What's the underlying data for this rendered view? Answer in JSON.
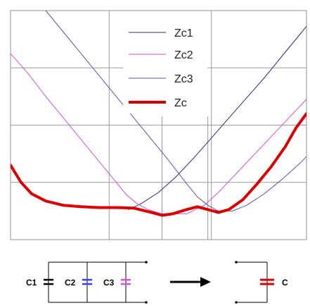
{
  "chart_data": {
    "type": "line",
    "title": "",
    "xlabel": "",
    "ylabel": "",
    "xlim": [
      0,
      8.4
    ],
    "ylim": [
      0,
      8
    ],
    "grid": true,
    "legend_position": "top-center",
    "series": [
      {
        "name": "Zc1",
        "color": "#2a2a7a",
        "width": 1,
        "x": [
          3.35,
          3.7,
          4.2,
          4.7,
          5.2,
          5.7,
          6.2,
          6.7,
          7.2,
          7.7,
          8.2,
          8.4
        ],
        "y": [
          1.05,
          1.25,
          1.65,
          2.2,
          2.85,
          3.55,
          4.25,
          4.95,
          5.65,
          6.4,
          7.15,
          7.45
        ]
      },
      {
        "name": "Zc2",
        "color": "#d24fd2",
        "width": 1,
        "x": [
          0,
          0.5,
          1,
          1.5,
          2,
          2.5,
          3,
          3.3,
          3.6,
          3.9,
          4.3,
          5.0,
          5.5,
          5.9,
          6.4,
          6.9,
          7.4,
          7.9,
          8.4
        ],
        "y": [
          6.5,
          5.8,
          5.0,
          4.25,
          3.5,
          2.75,
          2.0,
          1.55,
          1.25,
          1.05,
          0.9,
          0.9,
          1.2,
          1.65,
          2.3,
          2.95,
          3.6,
          4.25,
          4.9
        ]
      },
      {
        "name": "Zc3",
        "color": "#5454ae",
        "width": 1,
        "x": [
          1.0,
          1.5,
          2,
          2.5,
          3,
          3.5,
          4,
          4.5,
          5.0,
          5.3,
          5.6,
          5.9,
          6.3,
          6.7,
          7.2,
          7.7,
          8.2,
          8.4
        ],
        "y": [
          8.0,
          7.25,
          6.5,
          5.75,
          5.0,
          4.25,
          3.5,
          2.75,
          1.95,
          1.5,
          1.2,
          1.0,
          1.0,
          1.2,
          1.6,
          2.1,
          2.65,
          2.9
        ]
      },
      {
        "name": "Zc",
        "color": "#dd0000",
        "width": 4,
        "x": [
          0,
          0.3,
          0.6,
          1.0,
          1.5,
          2.0,
          2.5,
          3.0,
          3.5,
          4.0,
          4.3,
          4.6,
          5.0,
          5.3,
          5.6,
          5.9,
          6.2,
          6.6,
          7.0,
          7.4,
          7.8,
          8.1,
          8.4
        ],
        "y": [
          2.6,
          2.0,
          1.6,
          1.35,
          1.2,
          1.15,
          1.12,
          1.12,
          1.1,
          0.95,
          0.85,
          0.9,
          1.05,
          1.15,
          1.05,
          0.95,
          1.05,
          1.4,
          1.95,
          2.55,
          3.25,
          3.9,
          4.4
        ]
      }
    ]
  },
  "circuit": {
    "left_labels": [
      "C1",
      "C2",
      "C3"
    ],
    "right_label": "C",
    "capacitor_colors": [
      "#000000",
      "#3a3aff",
      "#d24fd2"
    ],
    "result_color": "#dd0000",
    "arrow_color": "#000000"
  }
}
